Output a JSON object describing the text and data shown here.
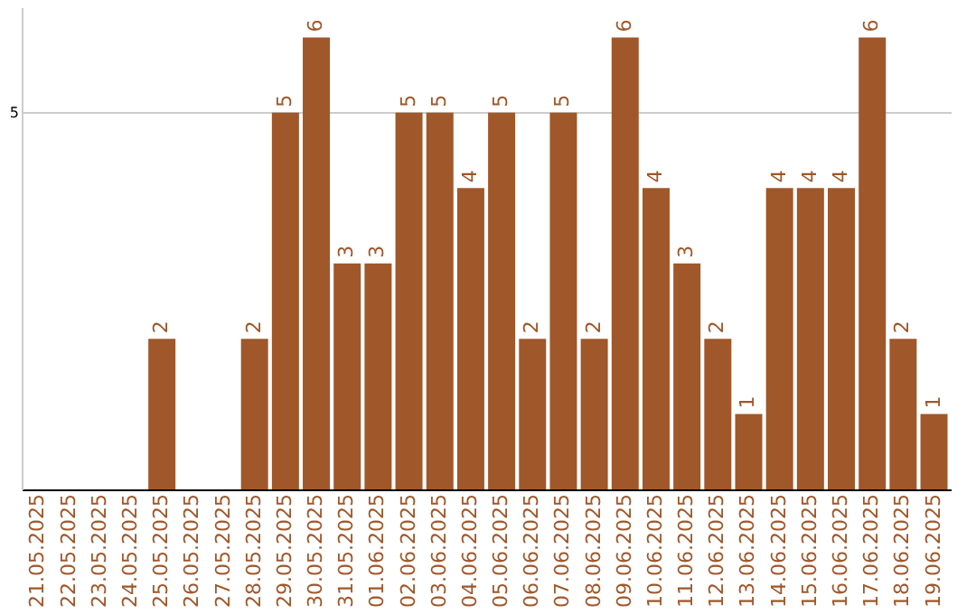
{
  "chart_data": {
    "type": "bar",
    "categories": [
      "21.05.2025",
      "22.05.2025",
      "23.05.2025",
      "24.05.2025",
      "25.05.2025",
      "26.05.2025",
      "27.05.2025",
      "28.05.2025",
      "29.05.2025",
      "30.05.2025",
      "31.05.2025",
      "01.06.2025",
      "02.06.2025",
      "03.06.2025",
      "04.06.2025",
      "05.06.2025",
      "06.06.2025",
      "07.06.2025",
      "08.06.2025",
      "09.06.2025",
      "10.06.2025",
      "11.06.2025",
      "12.06.2025",
      "13.06.2025",
      "14.06.2025",
      "15.06.2025",
      "16.06.2025",
      "17.06.2025",
      "18.06.2025",
      "19.06.2025"
    ],
    "values": [
      0,
      0,
      0,
      0,
      2,
      0,
      0,
      2,
      5,
      6,
      3,
      3,
      5,
      5,
      4,
      5,
      2,
      5,
      2,
      6,
      4,
      3,
      2,
      1,
      4,
      4,
      4,
      6,
      2,
      1
    ],
    "value_labels": [
      null,
      null,
      null,
      null,
      "2",
      null,
      null,
      "2",
      "5",
      "6",
      "3",
      "3",
      "5",
      "5",
      "4",
      "5",
      "2",
      "5",
      "2",
      "6",
      "4",
      "3",
      "2",
      "1",
      "4",
      "4",
      "4",
      "6",
      "2",
      "1"
    ],
    "color": "#a0572a",
    "ylim": [
      0,
      6.4
    ],
    "yticks": [
      5
    ],
    "grid": "y"
  }
}
